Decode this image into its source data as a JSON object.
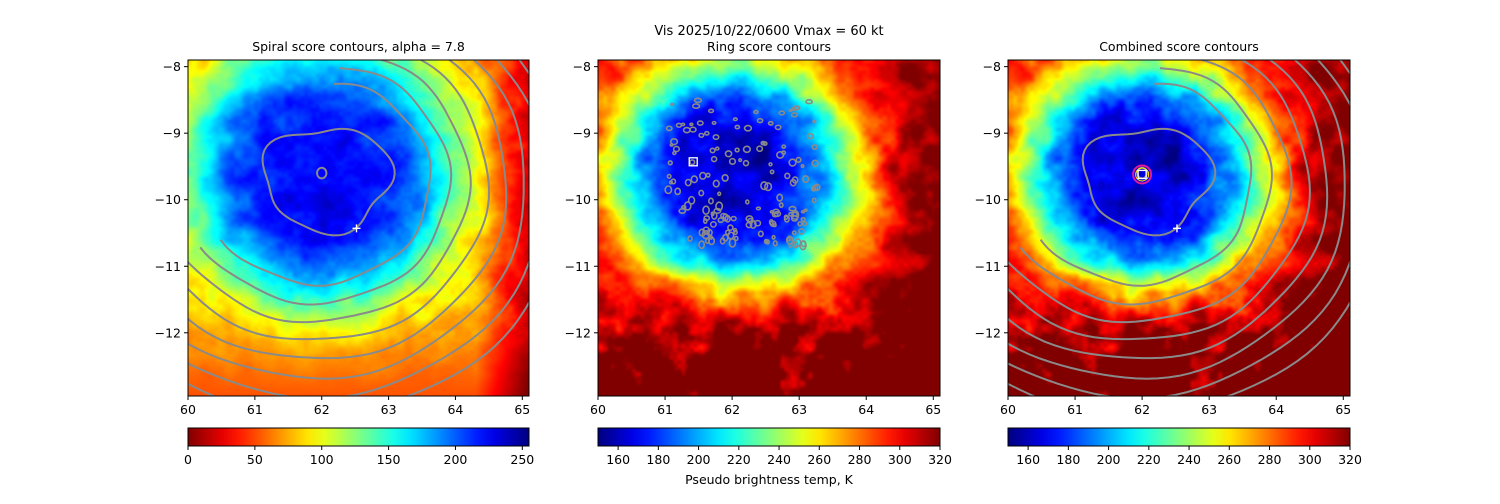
{
  "suptitle_line1": "Vis  2025/10/22/0600    Vmax = 60 kt",
  "colorbar_label": "Pseudo brightness temp, K",
  "colors": {
    "contour_gray": "#8a8a8a",
    "marker_white": "#ffffff",
    "center_ring": "#e0189b",
    "center_ring_inner": "#ffe800"
  },
  "chart_data": [
    {
      "type": "heatmap",
      "title": "Spiral score contours, alpha =  7.8",
      "field": "spiral",
      "xlim": [
        60,
        65.1
      ],
      "ylim": [
        -12.95,
        -7.9
      ],
      "xticks": [
        60,
        61,
        62,
        63,
        64,
        65
      ],
      "yticks": [
        -8,
        -9,
        -10,
        -11,
        -12
      ],
      "xtick_labels": [
        "60",
        "61",
        "62",
        "63",
        "64",
        "65"
      ],
      "ytick_labels": [
        "−8",
        "−9",
        "−10",
        "−11",
        "−12"
      ],
      "colormap": "jet_r",
      "colorbar_range": [
        0,
        255
      ],
      "colorbar_ticks": [
        0,
        50,
        100,
        150,
        200,
        250
      ],
      "colorbar_tick_labels": [
        "0",
        "50",
        "100",
        "150",
        "200",
        "250"
      ],
      "colorbar_label": "",
      "contour_type": "spiral",
      "center": [
        62.0,
        -9.65
      ],
      "plus_marker": [
        62.52,
        -10.43
      ],
      "square_marker": null,
      "ring_marker": null
    },
    {
      "type": "heatmap",
      "title": "Ring score contours",
      "field": "tb",
      "xlim": [
        60,
        65.1
      ],
      "ylim": [
        -12.95,
        -7.9
      ],
      "xticks": [
        60,
        61,
        62,
        63,
        64,
        65
      ],
      "yticks": [
        -8,
        -9,
        -10,
        -11,
        -12
      ],
      "xtick_labels": [
        "60",
        "61",
        "62",
        "63",
        "64",
        "65"
      ],
      "ytick_labels": [
        "−8",
        "−9",
        "−10",
        "−11",
        "−12"
      ],
      "colormap": "jet",
      "colorbar_range": [
        150,
        320
      ],
      "colorbar_ticks": [
        160,
        180,
        200,
        220,
        240,
        260,
        280,
        300,
        320
      ],
      "colorbar_tick_labels": [
        "160",
        "180",
        "200",
        "220",
        "240",
        "260",
        "280",
        "300",
        "320"
      ],
      "colorbar_label": "Pseudo brightness temp, K",
      "contour_type": "ring",
      "center": [
        62.0,
        -9.65
      ],
      "plus_marker": null,
      "square_marker": [
        61.42,
        -9.43
      ],
      "ring_marker": null
    },
    {
      "type": "heatmap",
      "title": "Combined score contours",
      "field": "tb",
      "xlim": [
        60,
        65.1
      ],
      "ylim": [
        -12.95,
        -7.9
      ],
      "xticks": [
        60,
        61,
        62,
        63,
        64,
        65
      ],
      "yticks": [
        -8,
        -9,
        -10,
        -11,
        -12
      ],
      "xtick_labels": [
        "60",
        "61",
        "62",
        "63",
        "64",
        "65"
      ],
      "ytick_labels": [
        "−8",
        "−9",
        "−10",
        "−11",
        "−12"
      ],
      "colormap": "jet",
      "colorbar_range": [
        150,
        320
      ],
      "colorbar_ticks": [
        160,
        180,
        200,
        220,
        240,
        260,
        280,
        300,
        320
      ],
      "colorbar_tick_labels": [
        "160",
        "180",
        "200",
        "220",
        "240",
        "260",
        "280",
        "300",
        "320"
      ],
      "colorbar_label": "",
      "contour_type": "spiral",
      "center": [
        62.0,
        -9.65
      ],
      "plus_marker": [
        62.52,
        -10.43
      ],
      "square_marker": [
        62.0,
        -9.62
      ],
      "ring_marker": [
        62.0,
        -9.62
      ]
    }
  ]
}
